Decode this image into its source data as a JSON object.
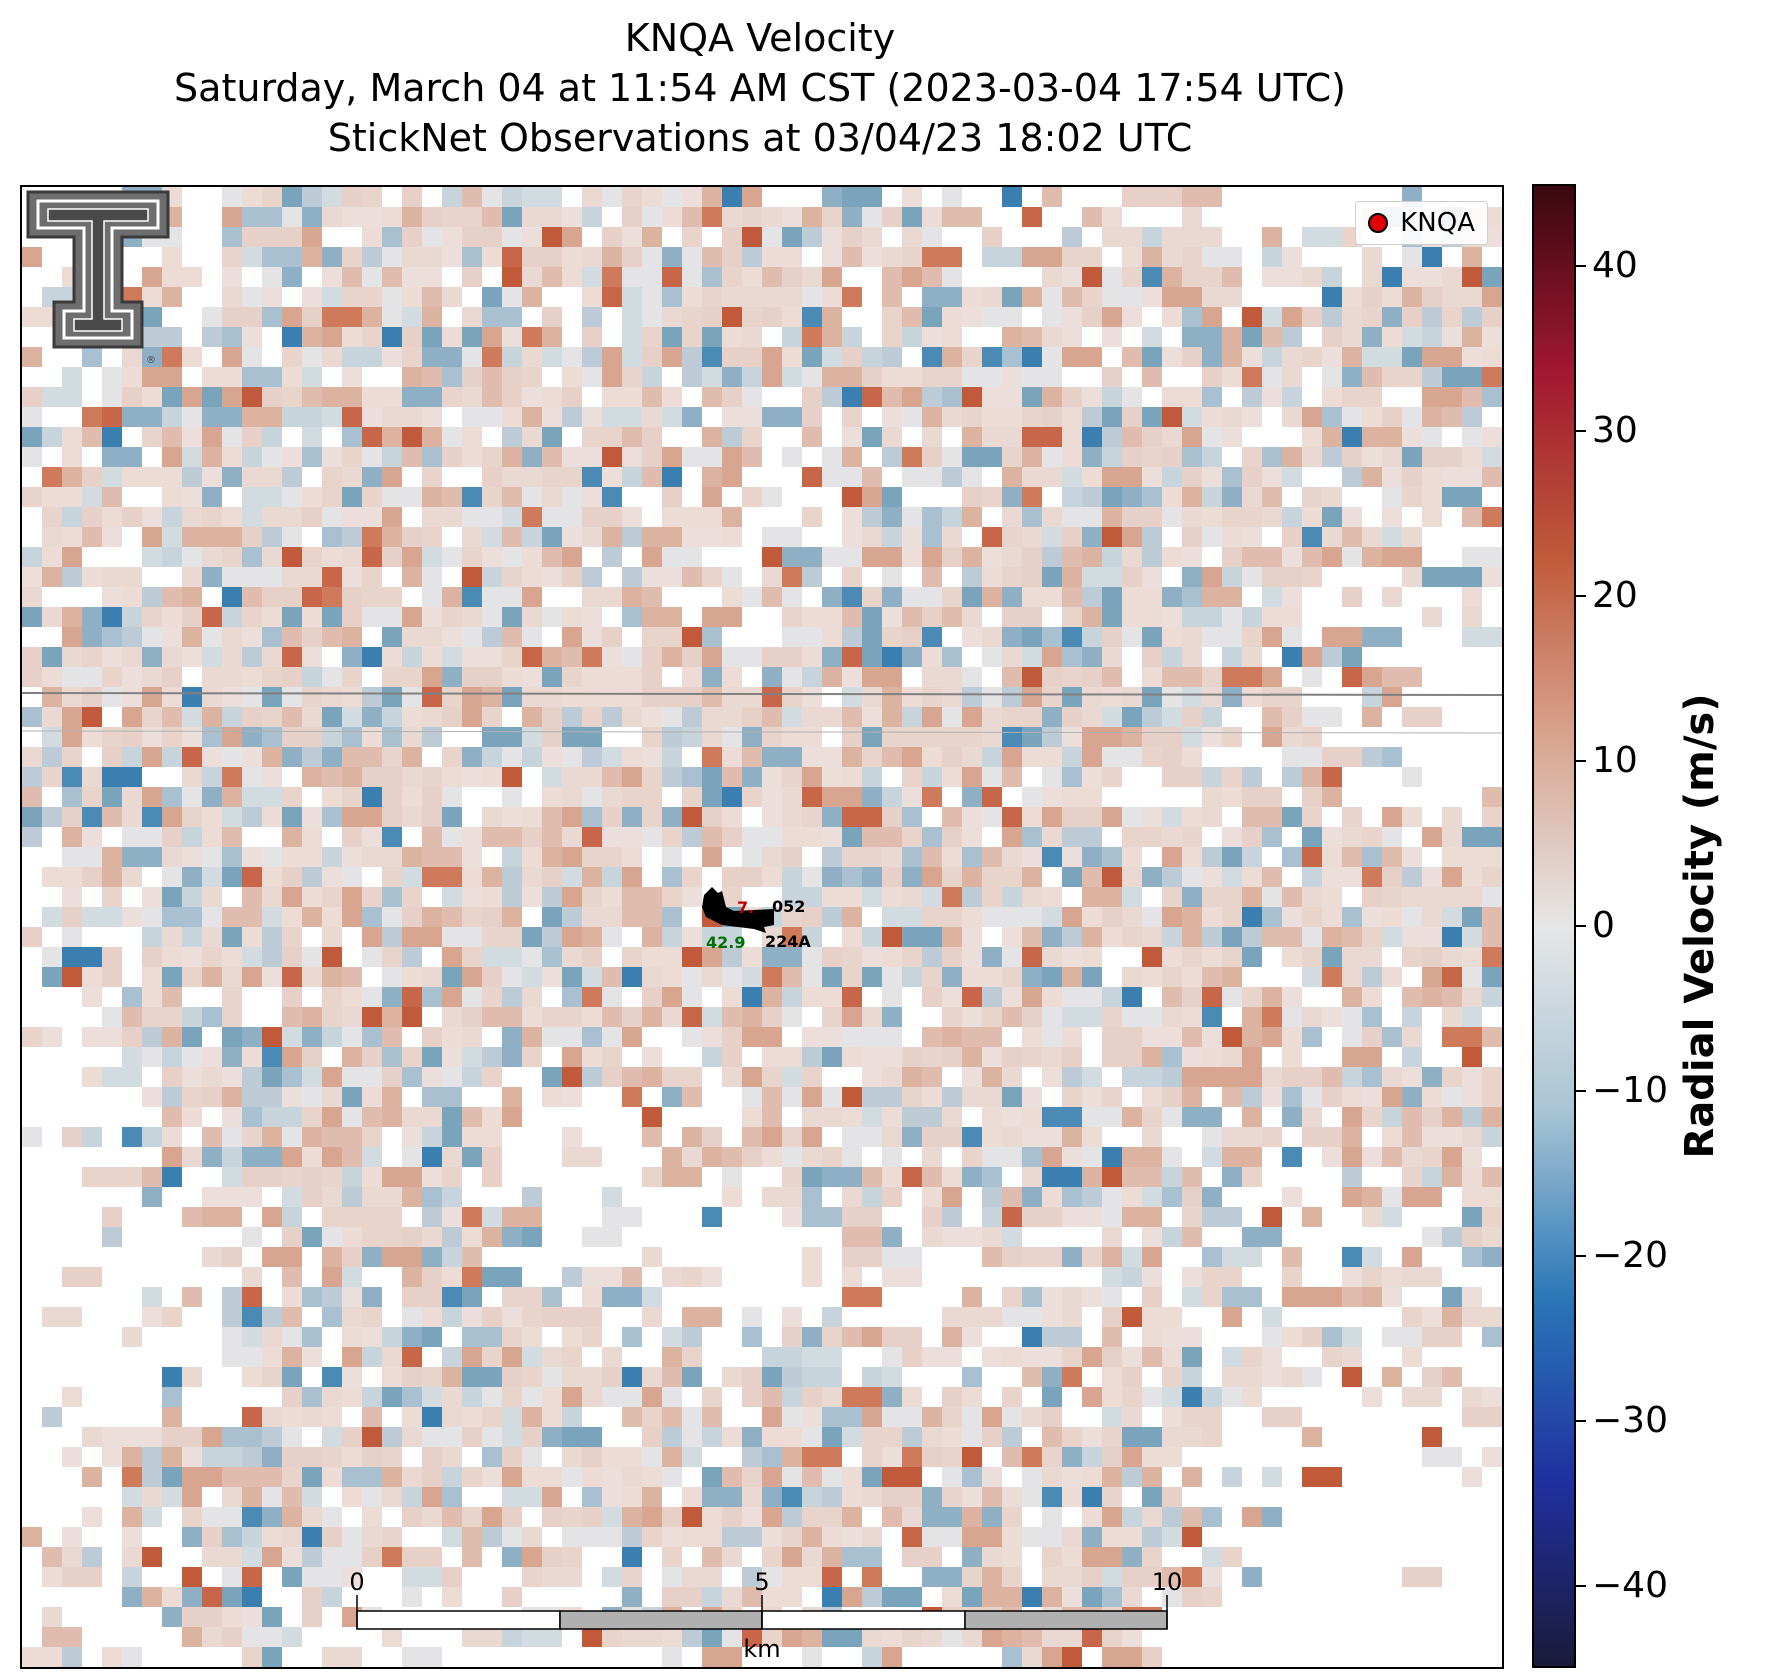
{
  "title": {
    "line1": "KNQA Velocity",
    "line2": "Saturday, March 04 at 11:54 AM CST (2023-03-04 17:54 UTC)",
    "line3": "StickNet Observations at 03/04/23 18:02 UTC"
  },
  "legend": {
    "label": "KNQA",
    "marker_color": "#e00000"
  },
  "logo": {
    "name": "Texas Tech Double T"
  },
  "scale_bar": {
    "labels": [
      "0",
      "5",
      "10"
    ],
    "unit": "km"
  },
  "station": {
    "id_top": "052",
    "id_bottom": "224A",
    "temp_value": "7.",
    "dewpoint_value": "42.9",
    "temp_color": "#c00000",
    "dewpoint_color": "#007000"
  },
  "colorbar": {
    "label": "Radial Velocity (m/s)",
    "range": [
      -45,
      45
    ],
    "ticks": [
      "40",
      "30",
      "20",
      "10",
      "0",
      "−10",
      "−20",
      "−30",
      "−40"
    ],
    "colors": [
      "#1a1a3a",
      "#2030a0",
      "#2a78b8",
      "#a8c4d4",
      "#e6e6e6",
      "#d8a590",
      "#c05a3a",
      "#a01830",
      "#3a0810"
    ]
  }
}
